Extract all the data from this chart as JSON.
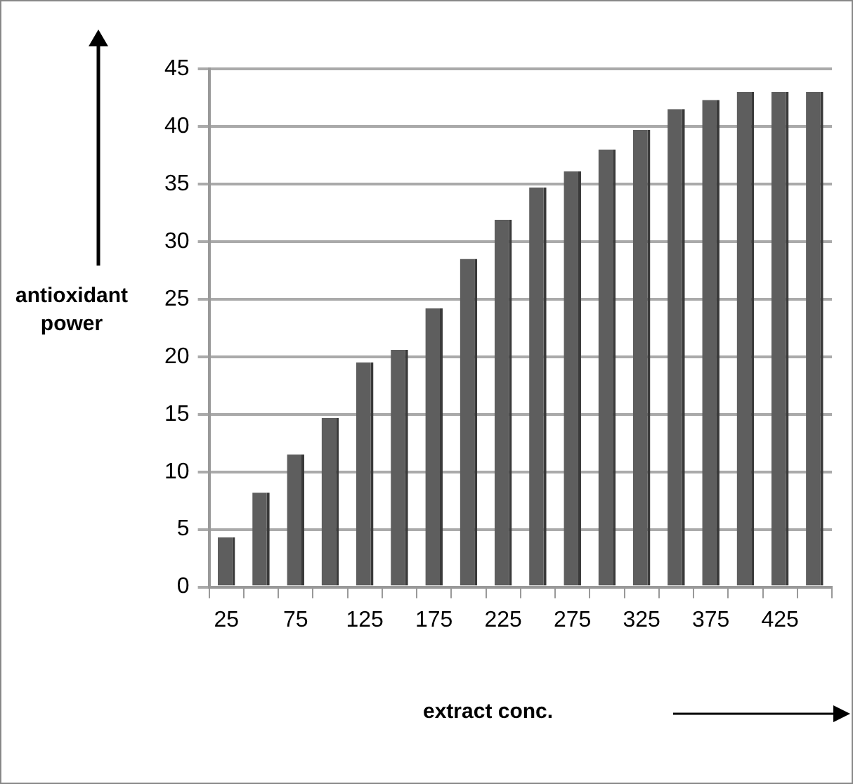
{
  "chart_data": {
    "type": "bar",
    "xlabel": "extract conc.",
    "ylabel": "antioxidant power",
    "categories": [
      "25",
      null,
      "75",
      null,
      "125",
      null,
      "175",
      null,
      "225",
      null,
      "275",
      null,
      "325",
      null,
      "375",
      null,
      "425",
      null
    ],
    "values": [
      4.3,
      8.2,
      11.5,
      14.7,
      19.5,
      20.6,
      24.2,
      28.5,
      31.9,
      34.7,
      36.1,
      38.0,
      39.7,
      41.5,
      42.3,
      43.0,
      43.0,
      43.0
    ],
    "color": "#5e5e5e",
    "ylim": [
      0,
      45
    ],
    "yticks": [
      0,
      5,
      10,
      15,
      20,
      25,
      30,
      35,
      40,
      45
    ],
    "grid": "y",
    "legend": false
  }
}
